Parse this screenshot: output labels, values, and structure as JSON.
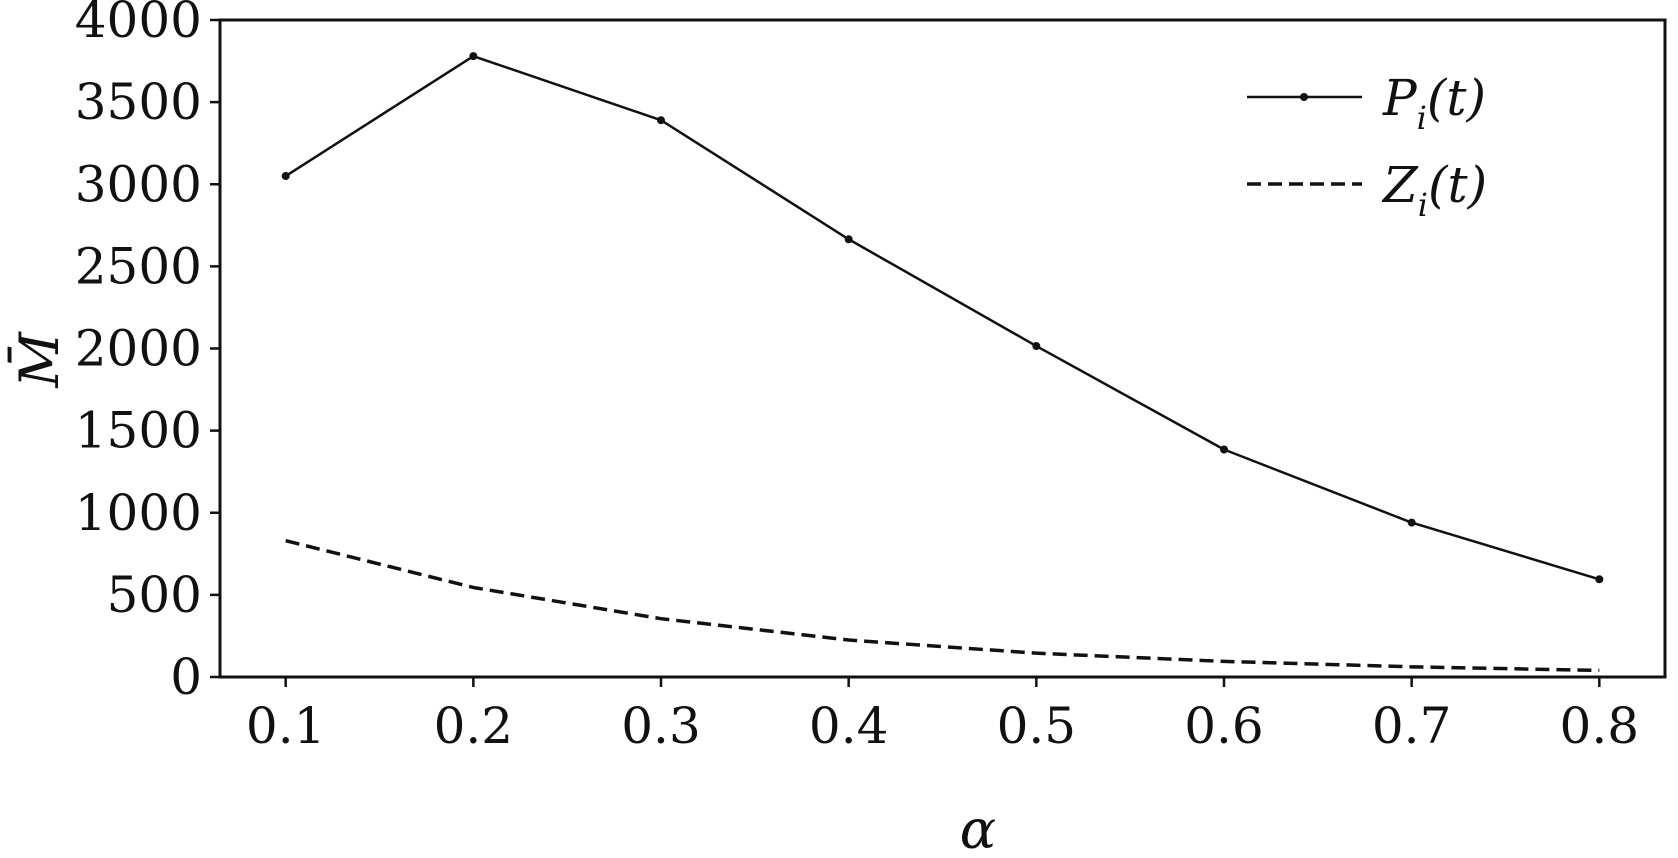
{
  "chart_data": {
    "type": "line",
    "title": "",
    "xlabel": "α",
    "ylabel": "M̄",
    "xlim": [
      0.065,
      0.835
    ],
    "ylim": [
      0,
      4000
    ],
    "x": [
      0.1,
      0.2,
      0.3,
      0.4,
      0.5,
      0.6,
      0.7,
      0.8
    ],
    "x_ticks": [
      "0.1",
      "0.2",
      "0.3",
      "0.4",
      "0.5",
      "0.6",
      "0.7",
      "0.8"
    ],
    "y_ticks": [
      "0",
      "500",
      "1000",
      "1500",
      "2000",
      "2500",
      "3000",
      "3500",
      "4000"
    ],
    "grid": false,
    "legend_position": "top-right",
    "series": [
      {
        "name": "Pi(t)",
        "name_main": "P",
        "name_sub": "i",
        "name_arg": "(t)",
        "style": "solid-with-markers",
        "values": [
          3050,
          3780,
          3390,
          2665,
          2015,
          1385,
          940,
          595
        ]
      },
      {
        "name": "Zi(t)",
        "name_main": "Z",
        "name_sub": "i",
        "name_arg": "(t)",
        "style": "dashed",
        "values": [
          830,
          545,
          355,
          225,
          145,
          95,
          62,
          40
        ]
      }
    ],
    "colors": {
      "line": "#111111",
      "axis": "#111111",
      "background": "#ffffff"
    }
  }
}
